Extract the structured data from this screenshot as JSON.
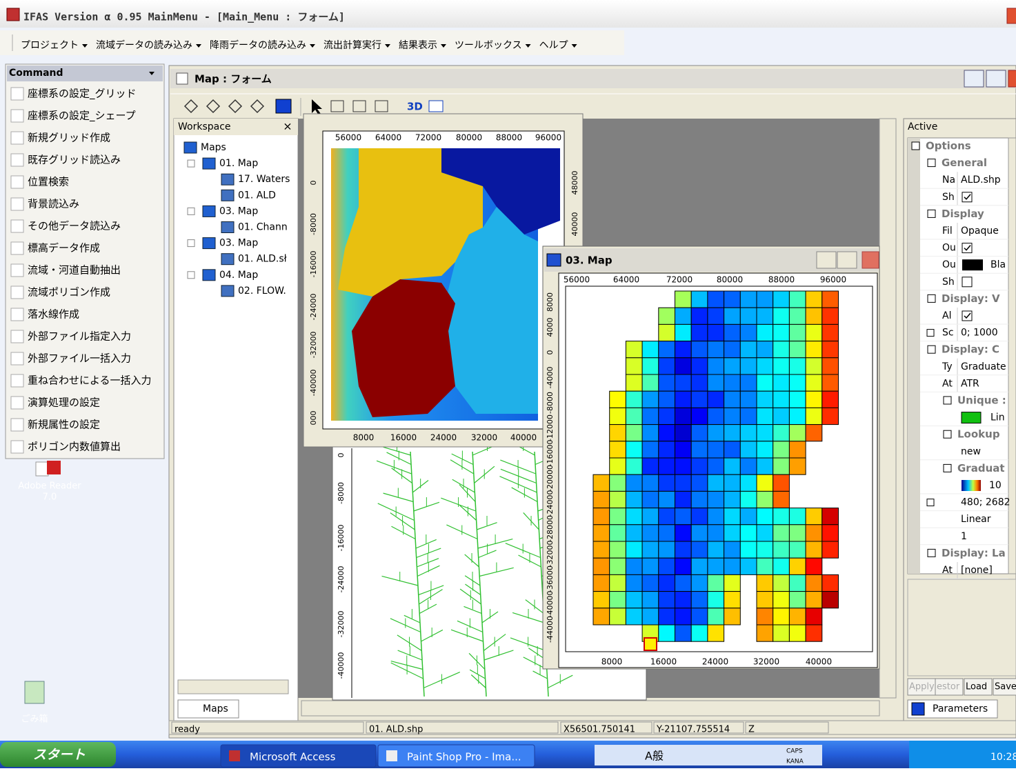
{
  "title_bar": {
    "title": "IFAS Version α 0.95 MainMenu - [Main_Menu : フォーム]"
  },
  "menu": [
    "プロジェクト",
    "流域データの読み込み",
    "降雨データの読み込み",
    "流出計算実行",
    "結果表示",
    "ツールボックス",
    "ヘルプ"
  ],
  "command_panel": {
    "title": "Command",
    "items": [
      "座標系の設定_グリッド",
      "座標系の設定_シェープ",
      "新規グリッド作成",
      "既存グリッド読込み",
      "位置検索",
      "背景読込み",
      "その他データ読込み",
      "標高データ作成",
      "流域・河道自動抽出",
      "流域ポリゴン作成",
      "落水線作成",
      "外部ファイル指定入力",
      "外部ファイル一括入力",
      "重ね合わせによる一括入力",
      "演算処理の設定",
      "新規属性の設定",
      "ポリゴン内数値算出"
    ]
  },
  "desktop_icons": [
    {
      "label_lines": [
        "Adobe Reader",
        "7.0"
      ]
    },
    {
      "label_lines": [
        "ごみ箱"
      ]
    }
  ],
  "map_form": {
    "title": "Map : フォーム",
    "toolbar_text": "3D"
  },
  "workspace": {
    "title": "Workspace",
    "close": "×",
    "tree": [
      "Maps",
      "01. Map",
      "17. Waters",
      "01. ALD",
      "03. Map",
      "01. Chann",
      "03. Map",
      "01. ALD.sł",
      "04. Map",
      "02. FLOW."
    ],
    "tab": "Maps"
  },
  "map_01": {
    "x_top": [
      "56000",
      "64000",
      "72000",
      "80000",
      "88000",
      "96000"
    ],
    "y_left": [
      "0",
      "-8000",
      "-16000",
      "-24000",
      "-32000",
      "-40000",
      "000"
    ],
    "x_bottom": [
      "8000",
      "16000",
      "24000",
      "32000",
      "40000"
    ],
    "y_right": [
      "48000",
      "40000"
    ]
  },
  "lower_map": {
    "y_left": [
      "0",
      "-8000",
      "-16000",
      "-24000",
      "-32000",
      "-40000"
    ]
  },
  "map_03": {
    "title": "03. Map",
    "x_top": [
      "56000",
      "64000",
      "72000",
      "80000",
      "88000",
      "96000"
    ],
    "y_left": [
      "8000",
      "4000",
      "0",
      "-4000",
      "-8000",
      "-12000",
      "-16000",
      "-20000",
      "-24000",
      "-28000",
      "-32000",
      "-36000",
      "-40000",
      "-44000"
    ],
    "x_bottom": [
      "8000",
      "16000",
      "24000",
      "32000",
      "40000"
    ]
  },
  "active_panel": {
    "title": "Active",
    "rows": [
      {
        "label": "Options"
      },
      {
        "label": "General"
      },
      {
        "label": "Na",
        "value": "ALD.shp"
      },
      {
        "label": "Sh"
      },
      {
        "label": "Display"
      },
      {
        "label": "Fil",
        "value": "Opaque"
      },
      {
        "label": "Ou"
      },
      {
        "label": "Ou",
        "value": "Bla"
      },
      {
        "label": "Sh"
      },
      {
        "label": "Display: V"
      },
      {
        "label": "Al"
      },
      {
        "label": "Sc",
        "value": "0; 1000"
      },
      {
        "label": "Display: C"
      },
      {
        "label": "Ty",
        "value": "Graduate"
      },
      {
        "label": "At",
        "value": "ATR"
      },
      {
        "label": "Unique :"
      },
      {
        "value": "Lin"
      },
      {
        "label": "Lookup"
      },
      {
        "value": "new"
      },
      {
        "label": "Graduat"
      },
      {
        "value": "10"
      },
      {
        "value": "480; 2682"
      },
      {
        "value": "Linear"
      },
      {
        "value": "1"
      },
      {
        "label": "Display: La"
      },
      {
        "label": "At",
        "value": "[none]"
      }
    ],
    "buttons": [
      "Apply",
      "estor",
      "Load",
      "Save"
    ],
    "tab": "Parameters"
  },
  "status_bar": [
    "ready",
    "01. ALD.shp",
    "X56501.750141",
    "Y-21107.755514",
    "Z"
  ],
  "taskbar": {
    "start": "スタート",
    "tasks": [
      "Microsoft Access",
      "Paint Shop Pro - Ima..."
    ],
    "ime": "A般",
    "caps": "CAPS",
    "kana": "KANA",
    "clock": "10:28"
  }
}
